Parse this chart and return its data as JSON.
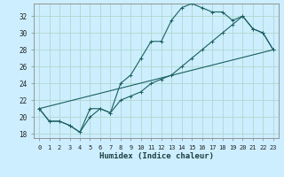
{
  "title": "",
  "xlabel": "Humidex (Indice chaleur)",
  "bg_color": "#cceeff",
  "grid_color": "#b0d8cc",
  "line_color": "#1a6060",
  "xlim": [
    -0.5,
    23.5
  ],
  "ylim": [
    17.5,
    33.5
  ],
  "xticks": [
    0,
    1,
    2,
    3,
    4,
    5,
    6,
    7,
    8,
    9,
    10,
    11,
    12,
    13,
    14,
    15,
    16,
    17,
    18,
    19,
    20,
    21,
    22,
    23
  ],
  "yticks": [
    18,
    20,
    22,
    24,
    26,
    28,
    30,
    32
  ],
  "line1_x": [
    0,
    1,
    2,
    3,
    4,
    5,
    6,
    7,
    8,
    9,
    10,
    11,
    12,
    13,
    14,
    15,
    16,
    17,
    18,
    19,
    20,
    21,
    22,
    23
  ],
  "line1_y": [
    21.0,
    19.5,
    19.5,
    19.0,
    18.2,
    21.0,
    21.0,
    20.5,
    24.0,
    25.0,
    27.0,
    29.0,
    29.0,
    31.5,
    33.0,
    33.5,
    33.0,
    32.5,
    32.5,
    31.5,
    32.0,
    30.5,
    30.0,
    28.0
  ],
  "line2_x": [
    0,
    1,
    2,
    3,
    4,
    5,
    6,
    7,
    8,
    9,
    10,
    11,
    12,
    13,
    14,
    15,
    16,
    17,
    18,
    19,
    20,
    21,
    22,
    23
  ],
  "line2_y": [
    21.0,
    19.5,
    19.5,
    19.0,
    18.2,
    20.0,
    21.0,
    20.5,
    22.0,
    22.5,
    23.0,
    24.0,
    24.5,
    25.0,
    26.0,
    27.0,
    28.0,
    29.0,
    30.0,
    31.0,
    32.0,
    30.5,
    30.0,
    28.0
  ],
  "line3_x": [
    0,
    23
  ],
  "line3_y": [
    21.0,
    28.0
  ]
}
